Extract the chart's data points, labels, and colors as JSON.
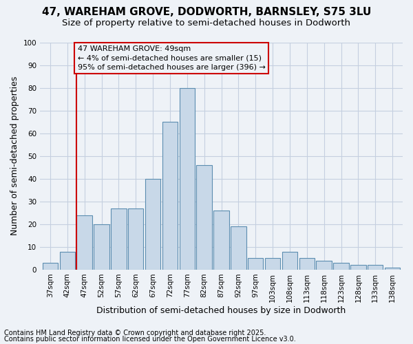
{
  "title": "47, WAREHAM GROVE, DODWORTH, BARNSLEY, S75 3LU",
  "subtitle": "Size of property relative to semi-detached houses in Dodworth",
  "xlabel": "Distribution of semi-detached houses by size in Dodworth",
  "ylabel": "Number of semi-detached properties",
  "footnote1": "Contains HM Land Registry data © Crown copyright and database right 2025.",
  "footnote2": "Contains public sector information licensed under the Open Government Licence v3.0.",
  "annotation_title": "47 WAREHAM GROVE: 49sqm",
  "annotation_line1": "← 4% of semi-detached houses are smaller (15)",
  "annotation_line2": "95% of semi-detached houses are larger (396) →",
  "bar_labels": [
    "37sqm",
    "42sqm",
    "47sqm",
    "52sqm",
    "57sqm",
    "62sqm",
    "67sqm",
    "72sqm",
    "77sqm",
    "82sqm",
    "87sqm",
    "92sqm",
    "97sqm",
    "103sqm",
    "108sqm",
    "113sqm",
    "118sqm",
    "123sqm",
    "128sqm",
    "133sqm",
    "138sqm"
  ],
  "bar_values": [
    3,
    8,
    24,
    20,
    27,
    27,
    40,
    65,
    80,
    46,
    26,
    19,
    5,
    5,
    8,
    5,
    4,
    3,
    2,
    2,
    1
  ],
  "bar_color": "#c8d8e8",
  "bar_edge_color": "#5b8db0",
  "highlight_bar_index": 2,
  "highlight_line_color": "#cc0000",
  "annotation_box_color": "#cc0000",
  "background_color": "#eef2f7",
  "grid_color": "#c5cfe0",
  "ylim": [
    0,
    100
  ],
  "yticks": [
    0,
    10,
    20,
    30,
    40,
    50,
    60,
    70,
    80,
    90,
    100
  ],
  "title_fontsize": 11,
  "subtitle_fontsize": 9.5,
  "axis_label_fontsize": 9,
  "tick_fontsize": 7.5,
  "annotation_fontsize": 8,
  "footnote_fontsize": 7
}
